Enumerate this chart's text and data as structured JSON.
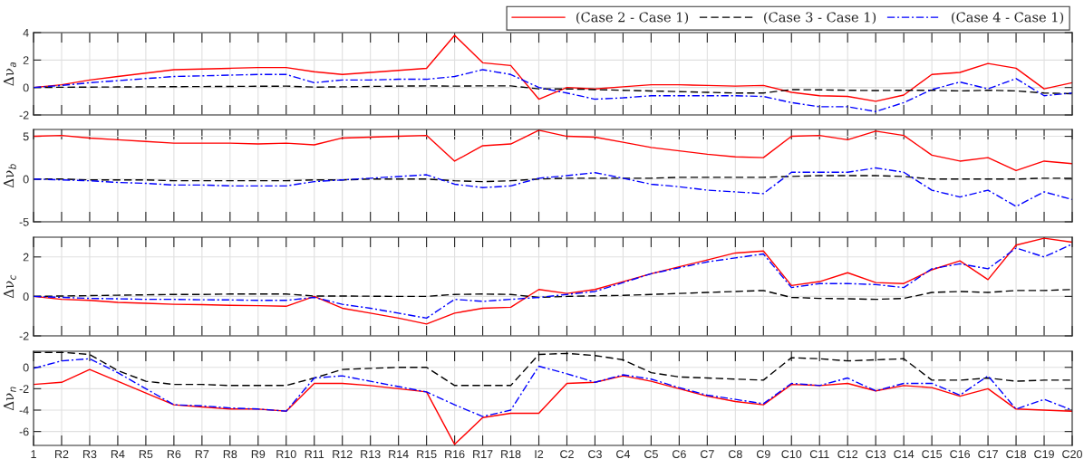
{
  "chart_data": [
    {
      "type": "line",
      "ylabel": "Δν$_{a}$",
      "ylim": [
        -2,
        4
      ],
      "yticks": [
        -2,
        0,
        2,
        4
      ],
      "grid": true,
      "legend": "top right",
      "tick_labels": "y",
      "marker": "none",
      "series": [
        {
          "name": "(Case 2 - Case 1)",
          "color": "#ff0000",
          "line_style": "solid",
          "values": [
            0,
            0.2,
            0.55,
            0.8,
            1.05,
            1.3,
            1.35,
            1.4,
            1.45,
            1.45,
            1.15,
            0.95,
            1.1,
            1.25,
            1.4,
            3.8,
            1.8,
            1.6,
            -0.85,
            0,
            -0.1,
            0.05,
            0.2,
            0.2,
            0.15,
            0.1,
            0.15,
            -0.35,
            -0.6,
            -0.65,
            -1.0,
            -0.55,
            0.95,
            1.1,
            1.75,
            1.4,
            -0.1,
            0.35
          ]
        },
        {
          "name": "(Case 3 - Case 1)",
          "color": "#000000",
          "line_style": "dashed",
          "values": [
            0,
            0.02,
            0.03,
            0.04,
            0.05,
            0.06,
            0.07,
            0.08,
            0.09,
            0.1,
            0.03,
            0.05,
            0.08,
            0.1,
            0.12,
            0.1,
            0.12,
            0.12,
            -0.1,
            -0.1,
            -0.15,
            -0.2,
            -0.25,
            -0.3,
            -0.35,
            -0.4,
            -0.4,
            -0.15,
            -0.17,
            -0.2,
            -0.22,
            -0.2,
            -0.2,
            -0.25,
            -0.2,
            -0.25,
            -0.4,
            -0.45
          ]
        },
        {
          "name": "(Case 4 - Case 1)",
          "color": "#0000ff",
          "line_style": "dashdot",
          "values": [
            0,
            0.15,
            0.35,
            0.5,
            0.65,
            0.8,
            0.85,
            0.9,
            0.95,
            0.95,
            0.35,
            0.55,
            0.55,
            0.6,
            0.6,
            0.8,
            1.3,
            0.95,
            0,
            -0.4,
            -0.85,
            -0.75,
            -0.6,
            -0.6,
            -0.6,
            -0.6,
            -0.65,
            -1.1,
            -1.4,
            -1.4,
            -1.75,
            -1.1,
            -0.15,
            0.4,
            -0.1,
            0.65,
            -0.6,
            -0.4
          ]
        }
      ]
    },
    {
      "type": "line",
      "ylabel": "Δν$_{b}$",
      "ylim": [
        -5,
        5.8
      ],
      "yticks": [
        -5,
        0,
        5
      ],
      "grid": true,
      "tick_labels": "y",
      "marker": "none",
      "series": [
        {
          "color": "#ff0000",
          "line_style": "solid",
          "values": [
            5.0,
            5.1,
            4.8,
            4.6,
            4.4,
            4.2,
            4.2,
            4.2,
            4.1,
            4.2,
            4.0,
            4.8,
            4.9,
            5.0,
            5.1,
            2.1,
            3.9,
            4.1,
            5.7,
            5.0,
            4.9,
            4.3,
            3.7,
            3.3,
            2.9,
            2.6,
            2.5,
            5.0,
            5.1,
            4.6,
            5.6,
            5.1,
            2.8,
            2.1,
            2.5,
            1.0,
            2.1,
            1.8
          ]
        },
        {
          "color": "#000000",
          "line_style": "dashed",
          "values": [
            0,
            0,
            -0.1,
            -0.1,
            -0.1,
            -0.2,
            -0.2,
            -0.2,
            -0.2,
            -0.2,
            -0.1,
            -0.1,
            0,
            0,
            0,
            -0.2,
            -0.3,
            -0.2,
            0,
            0.1,
            0.1,
            0.1,
            0.1,
            0.2,
            0.2,
            0.2,
            0.2,
            0.3,
            0.4,
            0.4,
            0.4,
            0.3,
            0,
            0,
            0,
            0,
            0.1,
            0.1
          ]
        },
        {
          "color": "#0000ff",
          "line_style": "dashdot",
          "values": [
            0,
            -0.1,
            -0.2,
            -0.4,
            -0.5,
            -0.7,
            -0.7,
            -0.8,
            -0.8,
            -0.8,
            -0.3,
            -0.1,
            0.1,
            0.3,
            0.5,
            -0.6,
            -1.0,
            -0.8,
            0.1,
            0.4,
            0.75,
            0.1,
            -0.6,
            -0.9,
            -1.3,
            -1.5,
            -1.7,
            0.8,
            0.8,
            0.8,
            1.3,
            0.8,
            -1.3,
            -2.1,
            -1.3,
            -3.2,
            -1.5,
            -2.4
          ]
        }
      ]
    },
    {
      "type": "line",
      "ylabel": "Δν$_{c}$",
      "ylim": [
        -2,
        3
      ],
      "yticks": [
        -2,
        0,
        2
      ],
      "grid": true,
      "tick_labels": "y",
      "marker": "none",
      "series": [
        {
          "color": "#ff0000",
          "line_style": "solid",
          "values": [
            0,
            -0.15,
            -0.2,
            -0.3,
            -0.35,
            -0.4,
            -0.42,
            -0.45,
            -0.47,
            -0.5,
            0,
            -0.6,
            -0.85,
            -1.1,
            -1.4,
            -0.85,
            -0.6,
            -0.55,
            0.35,
            0.15,
            0.35,
            0.75,
            1.15,
            1.5,
            1.85,
            2.2,
            2.3,
            0.55,
            0.75,
            1.2,
            0.7,
            0.65,
            1.35,
            1.8,
            0.85,
            2.6,
            2.95,
            2.75
          ]
        },
        {
          "color": "#000000",
          "line_style": "dashed",
          "values": [
            0,
            0.02,
            0.04,
            0.06,
            0.08,
            0.1,
            0.1,
            0.12,
            0.12,
            0.12,
            0.02,
            0.02,
            0.01,
            0,
            0,
            0.1,
            0.12,
            0.1,
            -0.05,
            0,
            0.03,
            0.05,
            0.1,
            0.15,
            0.2,
            0.25,
            0.3,
            -0.05,
            -0.1,
            -0.12,
            -0.15,
            -0.1,
            0.2,
            0.25,
            0.2,
            0.3,
            0.3,
            0.35
          ]
        },
        {
          "color": "#0000ff",
          "line_style": "dashdot",
          "values": [
            0,
            -0.05,
            -0.1,
            -0.12,
            -0.15,
            -0.15,
            -0.17,
            -0.18,
            -0.2,
            -0.2,
            -0.05,
            -0.4,
            -0.6,
            -0.85,
            -1.1,
            -0.15,
            -0.25,
            -0.15,
            -0.05,
            0.1,
            0.25,
            0.7,
            1.15,
            1.45,
            1.75,
            1.95,
            2.15,
            0.45,
            0.65,
            0.65,
            0.6,
            0.45,
            1.4,
            1.65,
            1.4,
            2.45,
            2.0,
            2.65
          ]
        }
      ]
    },
    {
      "type": "line",
      "ylabel": "Δν$_{n}$",
      "categories": [
        "1",
        "R2",
        "R3",
        "R4",
        "R5",
        "R6",
        "R7",
        "R8",
        "R9",
        "R10",
        "R11",
        "R12",
        "R13",
        "R14",
        "R15",
        "R16",
        "R17",
        "R18",
        "I2",
        "C2",
        "C3",
        "C4",
        "C5",
        "C6",
        "C7",
        "C8",
        "C9",
        "C10",
        "C11",
        "C12",
        "C13",
        "C14",
        "C15",
        "C16",
        "C17",
        "C18",
        "C19",
        "C20"
      ],
      "ylim": [
        -7.3,
        1.5
      ],
      "yticks": [
        -6,
        -4,
        -2,
        0
      ],
      "grid": true,
      "marker": "none",
      "series": [
        {
          "color": "#ff0000",
          "line_style": "solid",
          "values": [
            -1.6,
            -1.4,
            -0.2,
            -1.3,
            -2.4,
            -3.5,
            -3.7,
            -3.9,
            -3.9,
            -4.1,
            -1.5,
            -1.5,
            -1.7,
            -2.0,
            -2.3,
            -7.2,
            -4.7,
            -4.3,
            -4.3,
            -1.5,
            -1.4,
            -0.8,
            -1.3,
            -2.0,
            -2.7,
            -3.2,
            -3.5,
            -1.6,
            -1.7,
            -1.5,
            -2.2,
            -1.7,
            -1.9,
            -2.7,
            -2.0,
            -3.9,
            -4.0,
            -4.1
          ]
        },
        {
          "color": "#000000",
          "line_style": "dashed",
          "values": [
            1.4,
            1.4,
            1.2,
            -0.3,
            -1.3,
            -1.6,
            -1.6,
            -1.7,
            -1.7,
            -1.7,
            -1.0,
            -0.2,
            -0.1,
            0,
            0,
            -1.7,
            -1.7,
            -1.7,
            1.2,
            1.3,
            1.1,
            0.7,
            -0.5,
            -0.9,
            -1.0,
            -1.1,
            -1.2,
            0.9,
            0.8,
            0.6,
            0.7,
            0.8,
            -1.2,
            -1.2,
            -1.0,
            -1.3,
            -1.2,
            -1.2
          ]
        },
        {
          "color": "#0000ff",
          "line_style": "dashdot",
          "values": [
            -0.1,
            0.6,
            0.8,
            -0.5,
            -2.0,
            -3.5,
            -3.6,
            -3.8,
            -3.9,
            -4.1,
            -1.0,
            -0.8,
            -1.3,
            -1.8,
            -2.3,
            -3.5,
            -4.6,
            -4.0,
            0.1,
            -0.6,
            -1.4,
            -0.7,
            -1.1,
            -1.9,
            -2.6,
            -3.0,
            -3.4,
            -1.5,
            -1.7,
            -1.0,
            -2.2,
            -1.5,
            -1.5,
            -2.6,
            -0.8,
            -3.9,
            -3.0,
            -4.0
          ]
        }
      ]
    }
  ]
}
